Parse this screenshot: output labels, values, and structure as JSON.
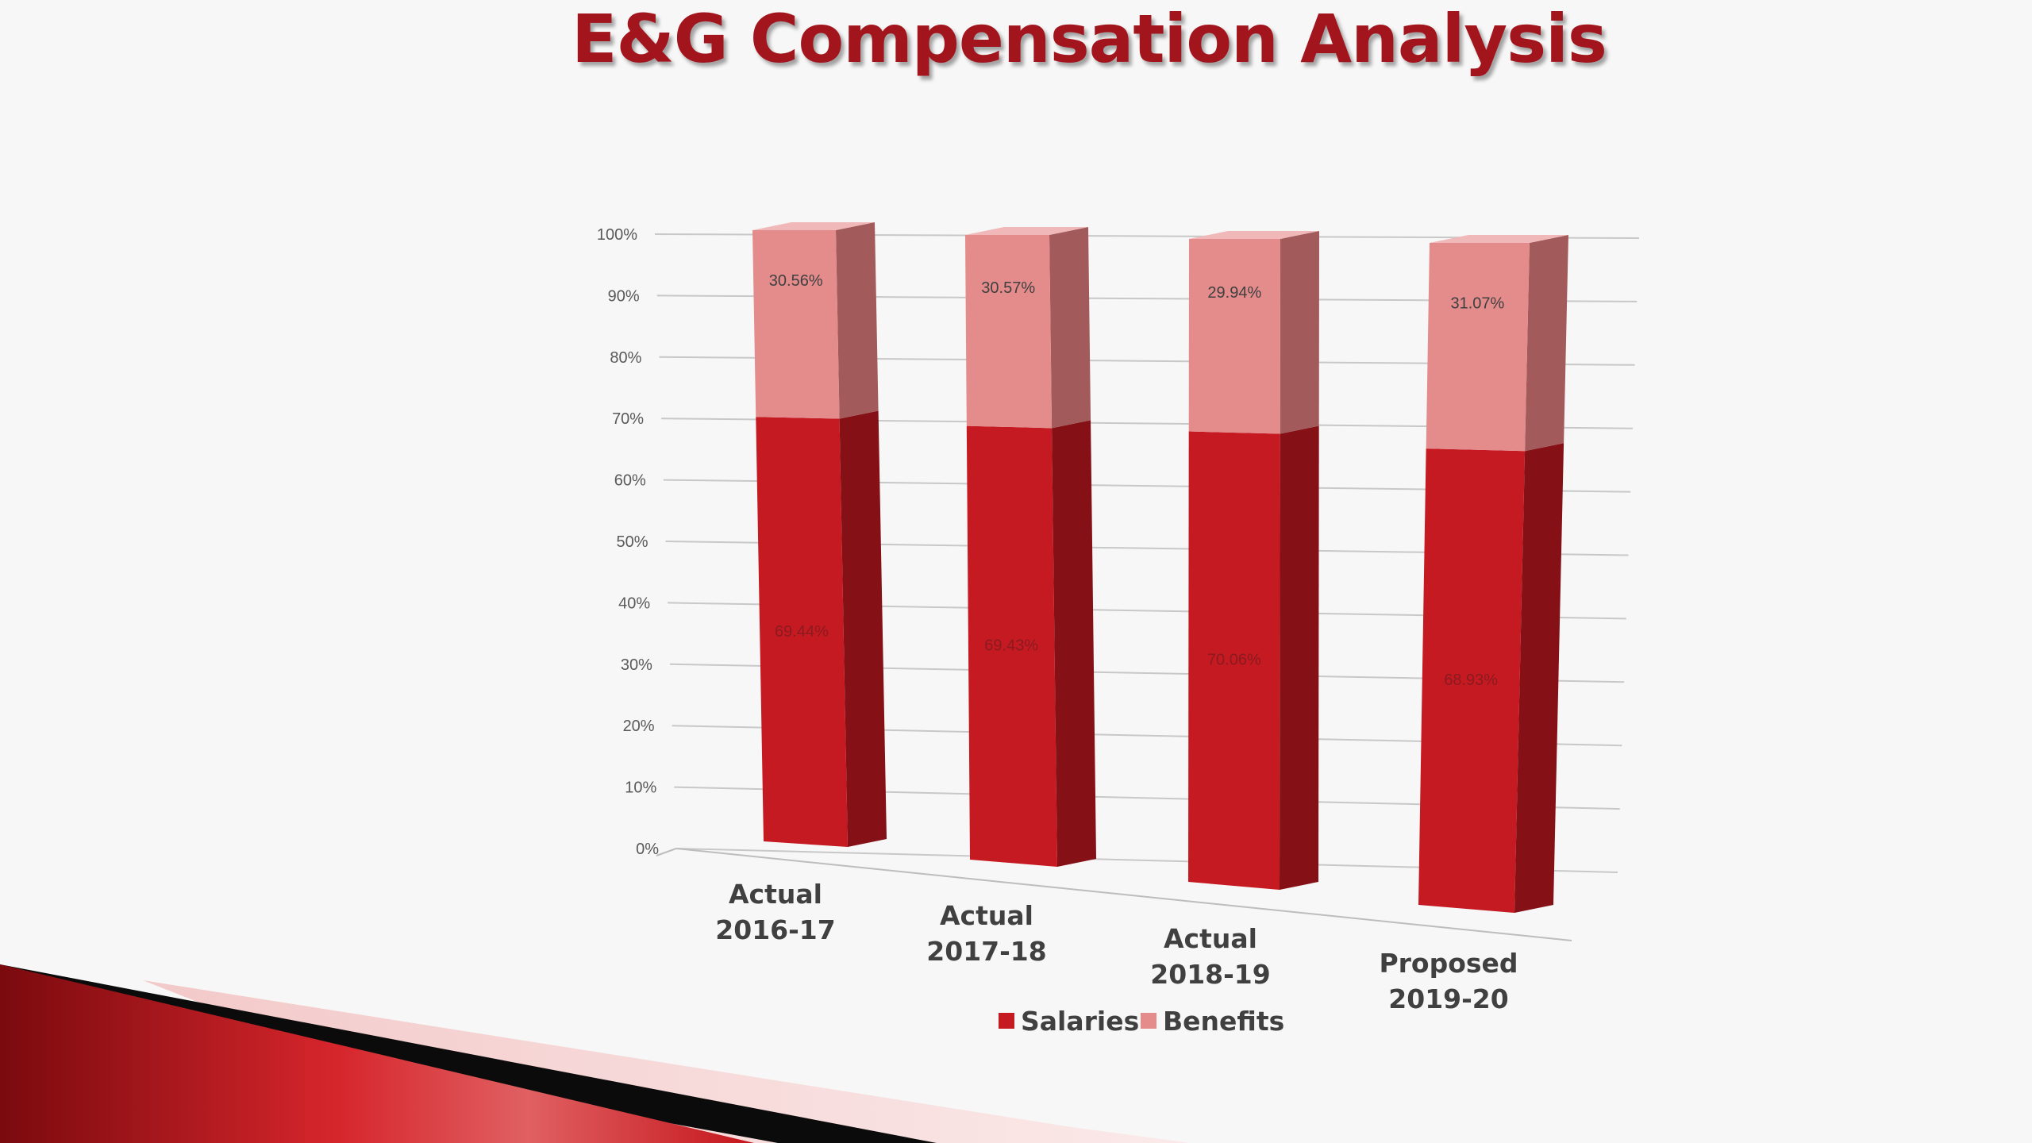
{
  "slide": {
    "title": "E&G Compensation Analysis"
  },
  "colors": {
    "salaries": "#c51a22",
    "salaries_side": "#851015",
    "benefits": "#e48b8b",
    "benefits_side": "#a35a5a",
    "title": "#a3151c"
  },
  "chart_data": {
    "type": "bar",
    "stacked": true,
    "three_d": true,
    "categories": [
      [
        "Actual",
        "2016-17"
      ],
      [
        "Actual",
        "2017-18"
      ],
      [
        "Actual",
        "2018-19"
      ],
      [
        "Proposed",
        "2019-20"
      ]
    ],
    "series": [
      {
        "name": "Salaries",
        "values": [
          69.44,
          69.43,
          70.06,
          68.93
        ],
        "labels": [
          "69.44%",
          "69.43%",
          "70.06%",
          "68.93%"
        ]
      },
      {
        "name": "Benefits",
        "values": [
          30.56,
          30.57,
          29.94,
          31.07
        ],
        "labels": [
          "30.56%",
          "30.57%",
          "29.94%",
          "31.07%"
        ]
      }
    ],
    "ylim": [
      0,
      100
    ],
    "yticks": [
      "0%",
      "10%",
      "20%",
      "30%",
      "40%",
      "50%",
      "60%",
      "70%",
      "80%",
      "90%",
      "100%"
    ],
    "grid": true,
    "legend_position": "bottom"
  }
}
